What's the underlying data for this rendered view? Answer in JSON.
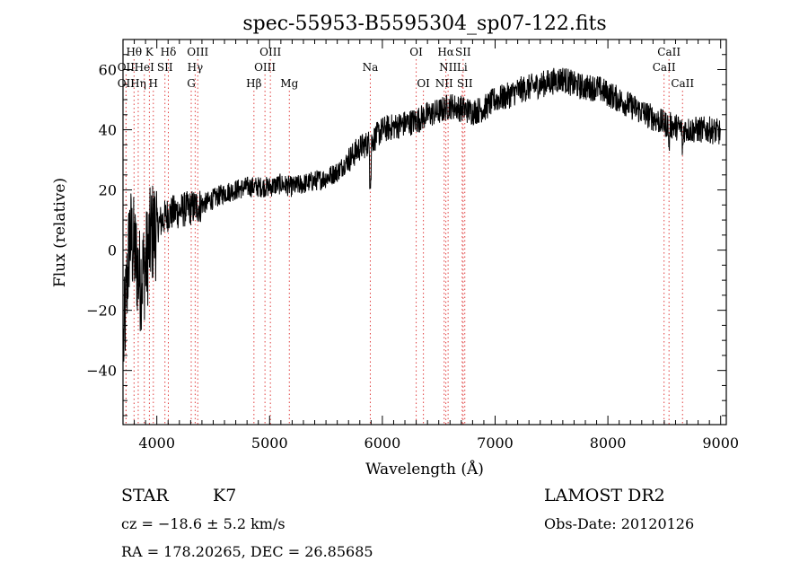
{
  "chart_data": {
    "type": "line",
    "title": "spec-55953-B5595304_sp07-122.fits",
    "xlabel": "Wavelength (Å)",
    "ylabel": "Flux (relative)",
    "xlim": [
      3700,
      9050
    ],
    "ylim": [
      -58,
      70
    ],
    "xticks": [
      {
        "value": 4000,
        "label": "4000"
      },
      {
        "value": 5000,
        "label": "5000"
      },
      {
        "value": 6000,
        "label": "6000"
      },
      {
        "value": 7000,
        "label": "7000"
      },
      {
        "value": 8000,
        "label": "8000"
      },
      {
        "value": 9000,
        "label": "9000"
      }
    ],
    "yticks": [
      {
        "value": -40,
        "label": "−40"
      },
      {
        "value": -20,
        "label": "−20"
      },
      {
        "value": 0,
        "label": "0"
      },
      {
        "value": 20,
        "label": "20"
      },
      {
        "value": 40,
        "label": "40"
      },
      {
        "value": 60,
        "label": "60"
      }
    ],
    "line_color": "#000000",
    "marker_color": "#e04040",
    "spectrum_anchors": [
      [
        3700,
        -35
      ],
      [
        3760,
        5
      ],
      [
        3800,
        0
      ],
      [
        3850,
        -10
      ],
      [
        3900,
        -5
      ],
      [
        3950,
        5
      ],
      [
        4000,
        8
      ],
      [
        4100,
        12
      ],
      [
        4200,
        13
      ],
      [
        4300,
        14
      ],
      [
        4400,
        15
      ],
      [
        4500,
        17
      ],
      [
        4600,
        19
      ],
      [
        4700,
        20
      ],
      [
        4800,
        21
      ],
      [
        4900,
        21
      ],
      [
        5000,
        21
      ],
      [
        5100,
        22
      ],
      [
        5200,
        21
      ],
      [
        5300,
        22
      ],
      [
        5400,
        23
      ],
      [
        5500,
        24
      ],
      [
        5600,
        26
      ],
      [
        5700,
        30
      ],
      [
        5800,
        34
      ],
      [
        5900,
        36
      ],
      [
        6000,
        40
      ],
      [
        6100,
        41
      ],
      [
        6200,
        42
      ],
      [
        6300,
        43
      ],
      [
        6400,
        45
      ],
      [
        6500,
        46
      ],
      [
        6600,
        48
      ],
      [
        6700,
        47
      ],
      [
        6800,
        46
      ],
      [
        6900,
        47
      ],
      [
        7000,
        50
      ],
      [
        7100,
        51
      ],
      [
        7200,
        53
      ],
      [
        7300,
        54
      ],
      [
        7400,
        55
      ],
      [
        7500,
        56
      ],
      [
        7600,
        57
      ],
      [
        7700,
        55
      ],
      [
        7800,
        54
      ],
      [
        7900,
        54
      ],
      [
        8000,
        52
      ],
      [
        8100,
        50
      ],
      [
        8200,
        48
      ],
      [
        8300,
        46
      ],
      [
        8400,
        44
      ],
      [
        8500,
        42
      ],
      [
        8600,
        41
      ],
      [
        8700,
        40
      ],
      [
        8800,
        40
      ],
      [
        8900,
        40
      ],
      [
        9000,
        39
      ]
    ],
    "line_markers": [
      {
        "label": "Hθ",
        "wave": 3798,
        "row": 1
      },
      {
        "label": "OII",
        "wave": 3727,
        "row": 3
      },
      {
        "label": "OII",
        "wave": 3727,
        "row": 2
      },
      {
        "label": "K",
        "wave": 3934,
        "row": 1
      },
      {
        "label": "HeI",
        "wave": 3889,
        "row": 2
      },
      {
        "label": "Hη",
        "wave": 3835,
        "row": 3
      },
      {
        "label": "H",
        "wave": 3969,
        "row": 3
      },
      {
        "label": "Hδ",
        "wave": 4102,
        "row": 1
      },
      {
        "label": "SII",
        "wave": 4072,
        "row": 2
      },
      {
        "label": "OIII",
        "wave": 4363,
        "row": 1
      },
      {
        "label": "Hγ",
        "wave": 4340,
        "row": 2
      },
      {
        "label": "G",
        "wave": 4305,
        "row": 3
      },
      {
        "label": "Hβ",
        "wave": 4861,
        "row": 3
      },
      {
        "label": "OIII",
        "wave": 5007,
        "row": 1
      },
      {
        "label": "OIII",
        "wave": 4959,
        "row": 2
      },
      {
        "label": "Mg",
        "wave": 5175,
        "row": 3
      },
      {
        "label": "Na",
        "wave": 5893,
        "row": 2
      },
      {
        "label": "OI",
        "wave": 6300,
        "row": 1
      },
      {
        "label": "OI",
        "wave": 6364,
        "row": 3
      },
      {
        "label": "Hα",
        "wave": 6563,
        "row": 1
      },
      {
        "label": "SII",
        "wave": 6716,
        "row": 1
      },
      {
        "label": "NII",
        "wave": 6583,
        "row": 2
      },
      {
        "label": "Li",
        "wave": 6708,
        "row": 2
      },
      {
        "label": "NII",
        "wave": 6548,
        "row": 3
      },
      {
        "label": "SII",
        "wave": 6731,
        "row": 3
      },
      {
        "label": "CaII",
        "wave": 8542,
        "row": 1
      },
      {
        "label": "CaII",
        "wave": 8498,
        "row": 2
      },
      {
        "label": "CaII",
        "wave": 8662,
        "row": 3
      }
    ]
  },
  "info": {
    "class_text": "STAR",
    "subclass_text": "K7",
    "cz_text": "cz = −18.6 ± 5.2 km/s",
    "coords_text": "RA = 178.20265, DEC =  26.85685",
    "survey_text": "LAMOST DR2",
    "obs_date_text": "Obs-Date: 20120126"
  }
}
